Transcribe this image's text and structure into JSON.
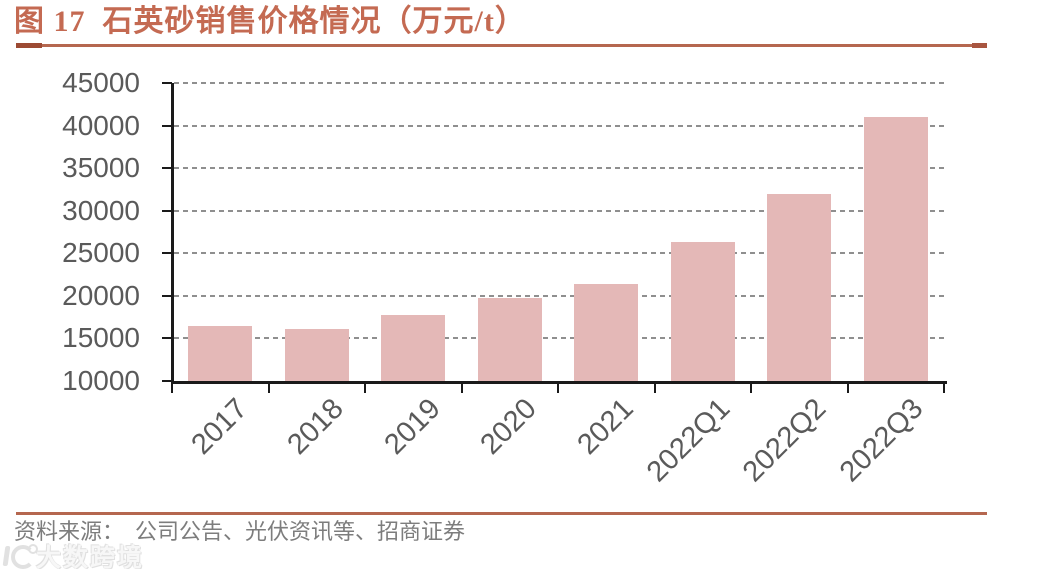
{
  "title": {
    "text": "图 17  石英砂销售价格情况（万元/t）"
  },
  "source": {
    "text": "资料来源：　公司公告、光伏资讯等、招商证券"
  },
  "watermark": {
    "logo": "dashukuajing-logo",
    "text": "大数跨境"
  },
  "colors": {
    "title_text": "#c46a52",
    "rule": "#b5674f",
    "bar": "#e4b8b7",
    "axis": "#1a1a1a",
    "gridline": "#8f8f8f",
    "tick_label": "#5a5a5a",
    "source_text": "#7d7d7d",
    "watermark": "#c9c9c9"
  },
  "chart_data": {
    "type": "bar",
    "title": "石英砂销售价格情况（万元/t）",
    "categories": [
      "2017",
      "2018",
      "2019",
      "2020",
      "2021",
      "2022Q1",
      "2022Q2",
      "2022Q3"
    ],
    "values": [
      16500,
      16100,
      17800,
      19700,
      21400,
      26300,
      32000,
      41000
    ],
    "xlabel": "",
    "ylabel": "",
    "ylim": [
      10000,
      45000
    ],
    "yticks": [
      10000,
      15000,
      20000,
      25000,
      30000,
      35000,
      40000,
      45000
    ],
    "grid": "dashed-horizontal",
    "legend": "none",
    "bar_color": "#e4b8b7"
  }
}
